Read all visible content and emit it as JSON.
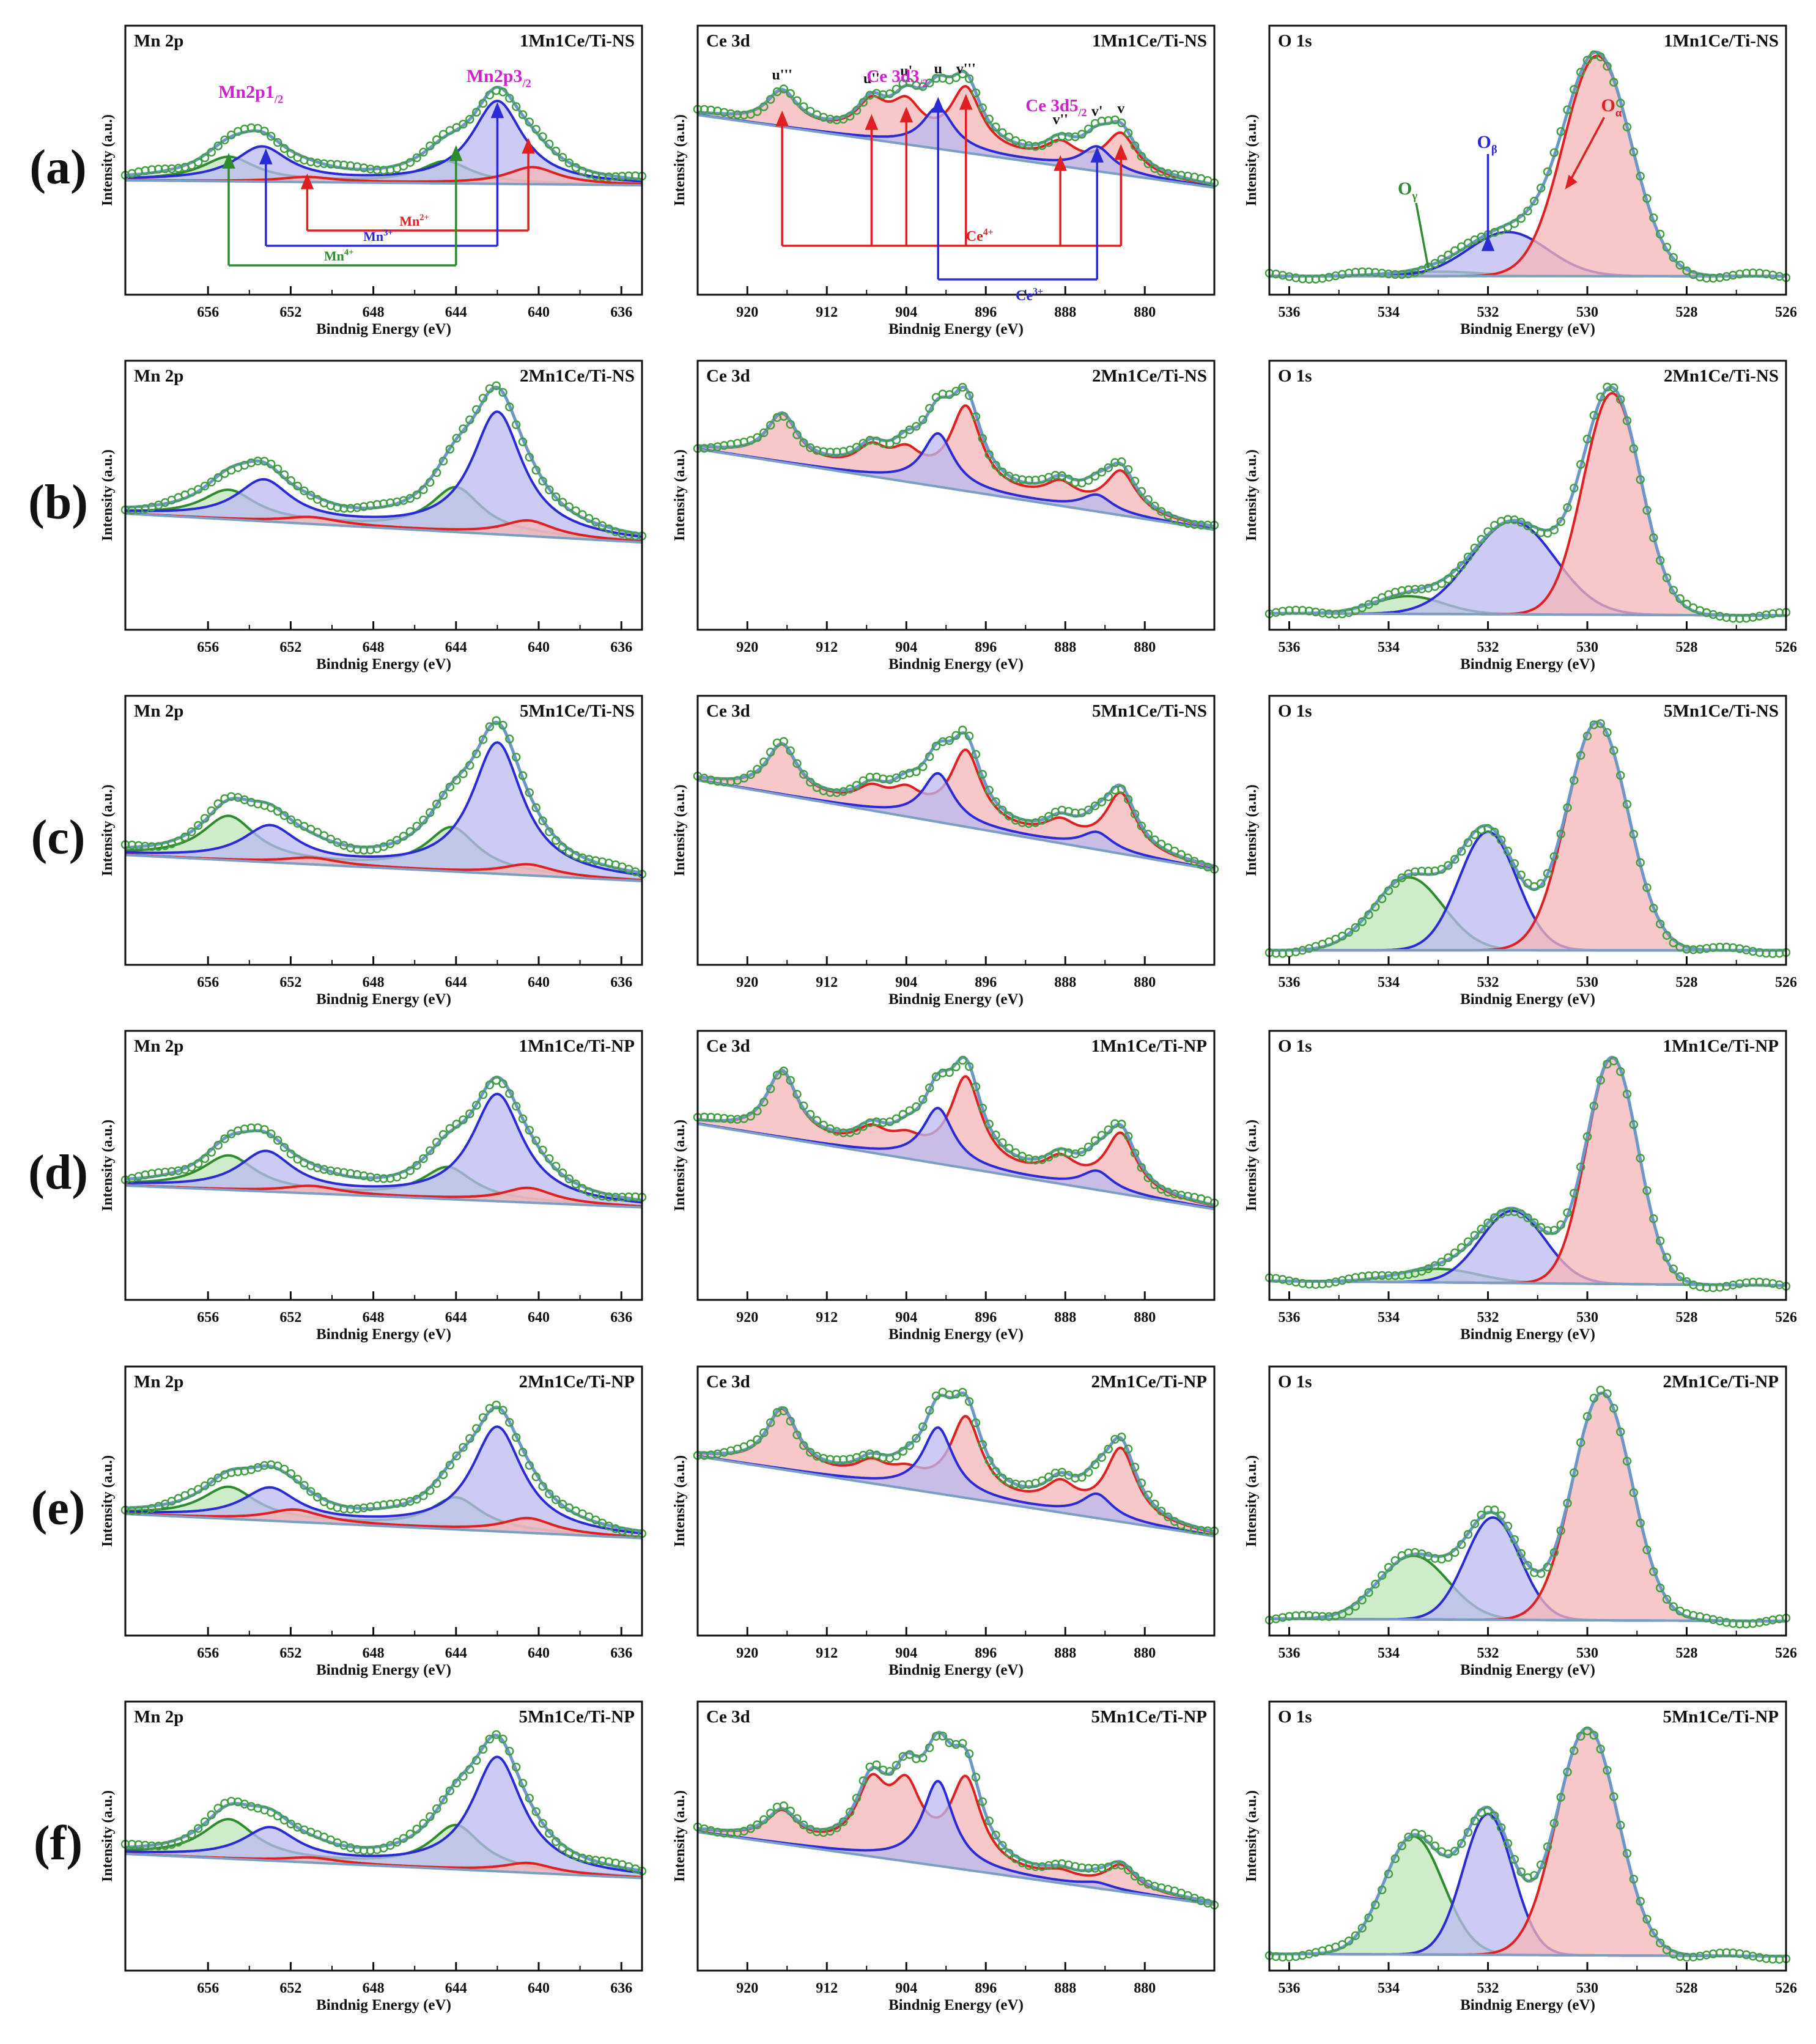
{
  "figure": {
    "row_labels": [
      "(a)",
      "(b)",
      "(c)",
      "(d)",
      "(e)",
      "(f)"
    ],
    "samples": [
      "1Mn1Ce/Ti-NS",
      "2Mn1Ce/Ti-NS",
      "5Mn1Ce/Ti-NS",
      "1Mn1Ce/Ti-NP",
      "2Mn1Ce/Ti-NP",
      "5Mn1Ce/Ti-NP"
    ],
    "y_label": "Intensity (a.u.)",
    "x_label": "Bindnig Energy (eV)"
  },
  "chart_data": [
    {
      "type": "line",
      "title": "Mn 2p",
      "xlabel": "Bindnig Energy (eV)",
      "ylabel": "Intensity (a.u.)",
      "xlim": [
        660,
        635
      ],
      "xticks": [
        "656",
        "652",
        "648",
        "644",
        "640",
        "636"
      ],
      "components": [
        {
          "name": "Mn4+",
          "color": "#2e8b2e",
          "fill": "#bfe6b5"
        },
        {
          "name": "Mn3+",
          "color": "#2a2ad6",
          "fill": "#b9b9f2"
        },
        {
          "name": "Mn2+",
          "color": "#e02020",
          "fill": "#f5b5b5"
        }
      ],
      "annotations": {
        "peak_1_2": "Mn2p1/2",
        "peak_3_2": "Mn2p3/2",
        "mn2": "Mn2+",
        "mn3": "Mn3+",
        "mn4": "Mn4+"
      },
      "peak_positions_eV": {
        "Mn4+": [
          655.0,
          644.0
        ],
        "Mn3+": [
          653.2,
          642.0
        ],
        "Mn2+": [
          651.2,
          640.5
        ]
      },
      "rows": [
        {
          "sample": "1Mn1Ce/Ti-NS",
          "baseline": [
            0.45,
            0.43
          ],
          "Mn4+": [
            [
              655.0,
              0.1
            ],
            [
              644.5,
              0.09
            ]
          ],
          "Mn3+": [
            [
              653.4,
              0.14
            ],
            [
              642.0,
              0.34
            ]
          ],
          "Mn2+": [
            [
              651.2,
              0.02
            ],
            [
              640.3,
              0.07
            ]
          ]
        },
        {
          "sample": "2Mn1Ce/Ti-NS",
          "baseline": [
            0.5,
            0.37
          ],
          "Mn4+": [
            [
              655.0,
              0.13
            ],
            [
              644.0,
              0.2
            ]
          ],
          "Mn3+": [
            [
              653.3,
              0.18
            ],
            [
              642.0,
              0.55
            ]
          ],
          "Mn2+": [
            [
              651.0,
              0.03
            ],
            [
              640.5,
              0.07
            ]
          ]
        },
        {
          "sample": "5Mn1Ce/Ti-NS",
          "baseline": [
            0.48,
            0.36
          ],
          "Mn4+": [
            [
              655.0,
              0.2
            ],
            [
              644.2,
              0.2
            ]
          ],
          "Mn3+": [
            [
              653.0,
              0.16
            ],
            [
              642.0,
              0.6
            ]
          ],
          "Mn2+": [
            [
              651.0,
              0.03
            ],
            [
              640.5,
              0.05
            ]
          ]
        },
        {
          "sample": "1Mn1Ce/Ti-NP",
          "baseline": [
            0.45,
            0.36
          ],
          "Mn4+": [
            [
              655.0,
              0.14
            ],
            [
              644.4,
              0.13
            ]
          ],
          "Mn3+": [
            [
              653.2,
              0.16
            ],
            [
              642.0,
              0.44
            ]
          ],
          "Mn2+": [
            [
              651.0,
              0.03
            ],
            [
              640.5,
              0.06
            ]
          ]
        },
        {
          "sample": "2Mn1Ce/Ti-NP",
          "baseline": [
            0.48,
            0.38
          ],
          "Mn4+": [
            [
              655.0,
              0.13
            ],
            [
              644.0,
              0.13
            ]
          ],
          "Mn3+": [
            [
              653.0,
              0.13
            ],
            [
              642.0,
              0.43
            ]
          ],
          "Mn2+": [
            [
              651.8,
              0.05
            ],
            [
              640.5,
              0.06
            ]
          ]
        },
        {
          "sample": "5Mn1Ce/Ti-NP",
          "baseline": [
            0.46,
            0.36
          ],
          "Mn4+": [
            [
              655.0,
              0.16
            ],
            [
              644.0,
              0.18
            ]
          ],
          "Mn3+": [
            [
              653.0,
              0.13
            ],
            [
              642.0,
              0.47
            ]
          ],
          "Mn2+": [
            [
              651.0,
              0.02
            ],
            [
              640.5,
              0.04
            ]
          ]
        }
      ]
    },
    {
      "type": "line",
      "title": "Ce 3d",
      "xlabel": "Bindnig Energy (eV)",
      "ylabel": "Intensity (a.u.)",
      "xlim": [
        925,
        873
      ],
      "xticks": [
        "920",
        "912",
        "904",
        "896",
        "888",
        "880"
      ],
      "components": [
        {
          "name": "Ce4+",
          "color": "#e02020",
          "fill": "#f5b5b5"
        },
        {
          "name": "Ce3+",
          "color": "#2a2ad6",
          "fill": "#b9b9f2"
        }
      ],
      "annotations": {
        "u3": "u'''",
        "u2": "u''",
        "u1": "u'",
        "u": "u",
        "v3": "v'''",
        "v2": "v''",
        "v1": "v'",
        "v": "v",
        "d32": "Ce 3d3/2",
        "d52": "Ce 3d5/2",
        "ce4": "Ce4+",
        "ce3": "Ce3+"
      },
      "peak_positions_eV": {
        "u'''": 916.5,
        "u''": 907.5,
        "u'": 904.0,
        "u": 900.8,
        "v'''": 898.0,
        "v''": 888.5,
        "v'": 884.8,
        "v": 882.4
      },
      "rows": [
        {
          "sample": "1Mn1Ce/Ti-NS",
          "baseline": [
            0.72,
            0.42
          ],
          "Ce4+": [
            [
              916.5,
              0.14
            ],
            [
              907.5,
              0.13
            ],
            [
              904.0,
              0.14
            ],
            [
              898.0,
              0.25
            ],
            [
              888.5,
              0.08
            ],
            [
              882.4,
              0.16
            ]
          ],
          "Ce3+": [
            [
              900.8,
              0.17
            ],
            [
              884.8,
              0.1
            ]
          ]
        },
        {
          "sample": "2Mn1Ce/Ti-NS",
          "baseline": [
            0.76,
            0.41
          ],
          "Ce4+": [
            [
              916.5,
              0.2
            ],
            [
              907.5,
              0.1
            ],
            [
              904.0,
              0.1
            ],
            [
              898.0,
              0.35
            ],
            [
              888.5,
              0.08
            ],
            [
              882.4,
              0.18
            ]
          ],
          "Ce3+": [
            [
              900.8,
              0.23
            ],
            [
              884.8,
              0.07
            ]
          ]
        },
        {
          "sample": "5Mn1Ce/Ti-NS",
          "baseline": [
            0.74,
            0.37
          ],
          "Ce4+": [
            [
              916.5,
              0.2
            ],
            [
              907.5,
              0.07
            ],
            [
              904.0,
              0.08
            ],
            [
              898.0,
              0.3
            ],
            [
              888.5,
              0.07
            ],
            [
              882.4,
              0.24
            ]
          ],
          "Ce3+": [
            [
              900.8,
              0.2
            ],
            [
              884.8,
              0.07
            ]
          ]
        },
        {
          "sample": "1Mn1Ce/Ti-NP",
          "baseline": [
            0.74,
            0.37
          ],
          "Ce4+": [
            [
              916.5,
              0.28
            ],
            [
              907.5,
              0.08
            ],
            [
              904.0,
              0.06
            ],
            [
              898.0,
              0.38
            ],
            [
              888.5,
              0.09
            ],
            [
              882.4,
              0.25
            ]
          ],
          "Ce3+": [
            [
              900.8,
              0.24
            ],
            [
              884.8,
              0.08
            ]
          ]
        },
        {
          "sample": "2Mn1Ce/Ti-NP",
          "baseline": [
            0.74,
            0.4
          ],
          "Ce4+": [
            [
              916.5,
              0.25
            ],
            [
              907.5,
              0.07
            ],
            [
              904.0,
              0.05
            ],
            [
              898.0,
              0.33
            ],
            [
              888.5,
              0.1
            ],
            [
              882.4,
              0.3
            ]
          ],
          "Ce3+": [
            [
              900.8,
              0.28
            ],
            [
              884.8,
              0.1
            ]
          ]
        },
        {
          "sample": "5Mn1Ce/Ti-NP",
          "baseline": [
            0.55,
            0.25
          ],
          "Ce4+": [
            [
              916.5,
              0.12
            ],
            [
              907.5,
              0.26
            ],
            [
              904.0,
              0.26
            ],
            [
              898.0,
              0.35
            ],
            [
              888.5,
              0.03
            ],
            [
              882.4,
              0.1
            ]
          ],
          "Ce3+": [
            [
              900.8,
              0.35
            ],
            [
              884.8,
              0.02
            ]
          ]
        }
      ]
    },
    {
      "type": "line",
      "title": "O 1s",
      "xlabel": "Bindnig Energy (eV)",
      "ylabel": "Intensity (a.u.)",
      "xlim": [
        536.4,
        526
      ],
      "xticks": [
        "536",
        "534",
        "532",
        "530",
        "528",
        "526"
      ],
      "components": [
        {
          "name": "Oγ",
          "color": "#2e8b2e",
          "fill": "#bfe6b5"
        },
        {
          "name": "Oβ",
          "color": "#2a2ad6",
          "fill": "#b9b9f2"
        },
        {
          "name": "Oα",
          "color": "#e02020",
          "fill": "#f5b5b5"
        }
      ],
      "annotations": {
        "o_gamma": "Oγ",
        "o_beta": "Oβ",
        "o_alpha": "Oα"
      },
      "peak_positions_eV": {
        "Oγ": 533.3,
        "Oβ": 531.6,
        "Oα": 529.7
      },
      "rows": [
        {
          "sample": "1Mn1Ce/Ti-NS",
          "baseline": [
            0.06,
            0.06
          ],
          "Oγ": [
            533.0,
            0.02,
            0.9
          ],
          "Oβ": [
            531.6,
            0.2,
            0.8
          ],
          "Oα": [
            529.8,
            1.0,
            0.68
          ]
        },
        {
          "sample": "2Mn1Ce/Ti-NS",
          "baseline": [
            0.05,
            0.04
          ],
          "Oγ": [
            533.6,
            0.08,
            0.7
          ],
          "Oβ": [
            531.5,
            0.42,
            0.85
          ],
          "Oα": [
            529.5,
            1.0,
            0.58
          ]
        },
        {
          "sample": "5Mn1Ce/Ti-NS",
          "baseline": [
            0.04,
            0.04
          ],
          "Oγ": [
            533.6,
            0.32,
            0.7
          ],
          "Oβ": [
            532.0,
            0.52,
            0.58
          ],
          "Oα": [
            529.8,
            1.0,
            0.62
          ]
        },
        {
          "sample": "1Mn1Ce/Ti-NP",
          "baseline": [
            0.06,
            0.04
          ],
          "Oγ": [
            533.0,
            0.06,
            0.8
          ],
          "Oβ": [
            531.5,
            0.32,
            0.65
          ],
          "Oα": [
            529.5,
            1.0,
            0.52
          ]
        },
        {
          "sample": "2Mn1Ce/Ti-NP",
          "baseline": [
            0.05,
            0.04
          ],
          "Oγ": [
            533.5,
            0.28,
            0.7
          ],
          "Oβ": [
            531.9,
            0.45,
            0.55
          ],
          "Oα": [
            529.7,
            1.0,
            0.6
          ]
        },
        {
          "sample": "5Mn1Ce/Ti-NP",
          "baseline": [
            0.05,
            0.04
          ],
          "Oγ": [
            533.5,
            0.52,
            0.6
          ],
          "Oβ": [
            532.0,
            0.62,
            0.5
          ],
          "Oα": [
            530.0,
            1.0,
            0.62
          ]
        }
      ]
    }
  ]
}
